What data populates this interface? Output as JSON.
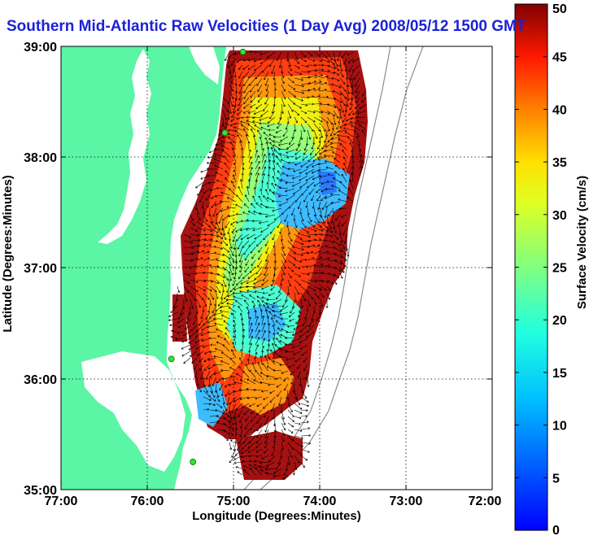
{
  "title": "Southern Mid-Atlantic Raw Velocities (1 Day Avg) 2008/05/12 1500 GMT",
  "map": {
    "xlabel": "Longitude (Degrees:Minutes)",
    "ylabel": "Latitude (Degrees:Minutes)",
    "x_ticks": [
      "77:00",
      "76:00",
      "75:00",
      "74:00",
      "73:00",
      "72:00"
    ],
    "y_ticks": [
      "39:00",
      "38:00",
      "37:00",
      "36:00",
      "35:00"
    ],
    "lon_range": [
      -77,
      -72
    ],
    "lat_range": [
      35,
      39
    ],
    "grid": true,
    "land_color": "#5af5a5",
    "station_markers": [
      {
        "lon": -74.89,
        "lat": 38.95
      },
      {
        "lon": -75.1,
        "lat": 38.22
      },
      {
        "lon": -75.72,
        "lat": 36.18
      },
      {
        "lon": -75.47,
        "lat": 35.25
      }
    ]
  },
  "colorbar": {
    "label": "Surface Velocity (cm/s)",
    "min": 0,
    "max": 50,
    "ticks": [
      "0",
      "5",
      "10",
      "15",
      "20",
      "25",
      "30",
      "35",
      "40",
      "45",
      "50"
    ],
    "colormap": "jet"
  }
}
